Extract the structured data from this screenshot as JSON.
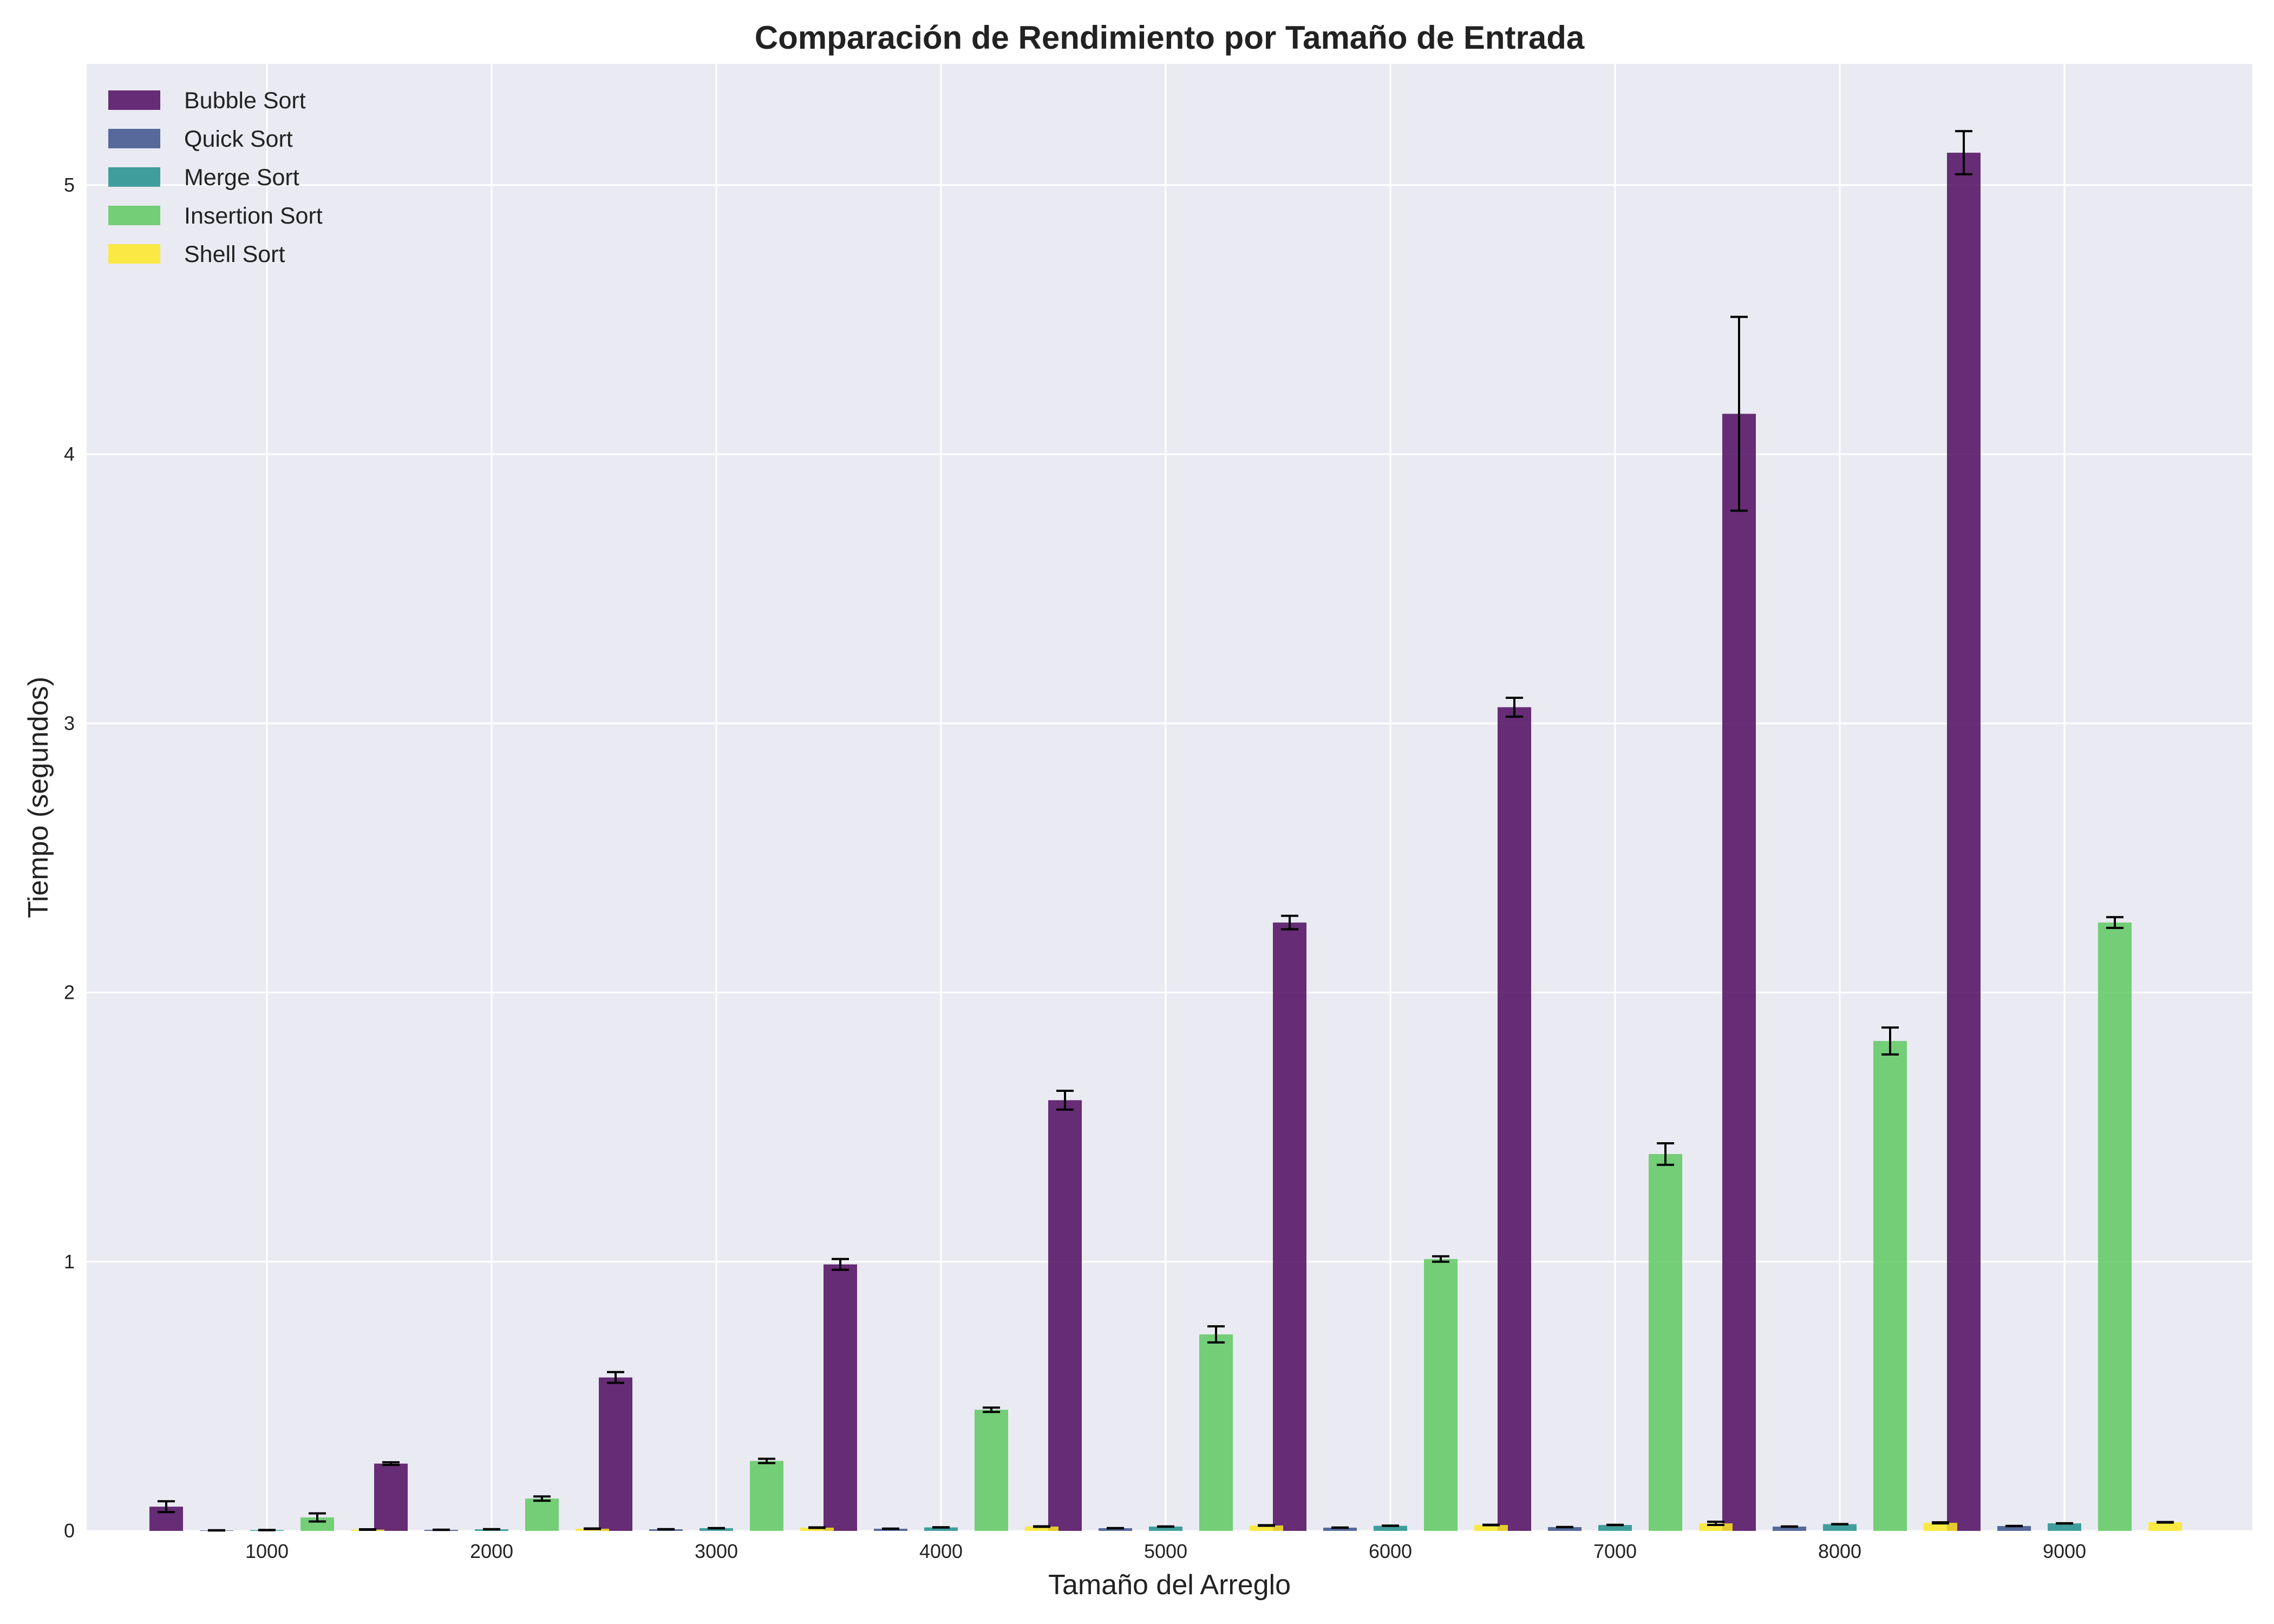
{
  "chart_data": {
    "type": "bar",
    "title": "Comparación de Rendimiento por Tamaño de Entrada",
    "xlabel": "Tamaño del Arreglo",
    "ylabel": "Tiempo (segundos)",
    "categories": [
      "1000",
      "2000",
      "3000",
      "4000",
      "5000",
      "6000",
      "7000",
      "8000",
      "9000"
    ],
    "ylim": [
      0,
      5.45
    ],
    "yticks": [
      "0",
      "1",
      "2",
      "3",
      "4",
      "5"
    ],
    "grid": true,
    "legend_position": "top-left",
    "series": [
      {
        "name": "Bubble Sort",
        "color": "#4f0b5f",
        "values": [
          0.09,
          0.25,
          0.57,
          0.99,
          1.6,
          2.26,
          3.06,
          4.15,
          5.12
        ],
        "errors": [
          0.02,
          0.005,
          0.02,
          0.02,
          0.035,
          0.025,
          0.035,
          0.36,
          0.08
        ]
      },
      {
        "name": "Quick Sort",
        "color": "#3b528b",
        "values": [
          0.002,
          0.004,
          0.006,
          0.008,
          0.01,
          0.012,
          0.014,
          0.016,
          0.018
        ],
        "errors": [
          0.0005,
          0.0005,
          0.0005,
          0.0005,
          0.0005,
          0.0005,
          0.0005,
          0.0005,
          0.0005
        ]
      },
      {
        "name": "Merge Sort",
        "color": "#21918c",
        "values": [
          0.003,
          0.006,
          0.01,
          0.013,
          0.016,
          0.019,
          0.022,
          0.025,
          0.028
        ],
        "errors": [
          0.0005,
          0.0005,
          0.0005,
          0.0005,
          0.0005,
          0.0005,
          0.0005,
          0.0005,
          0.0005
        ]
      },
      {
        "name": "Insertion Sort",
        "color": "#5ec962",
        "values": [
          0.05,
          0.12,
          0.26,
          0.45,
          0.73,
          1.01,
          1.4,
          1.82,
          2.26
        ],
        "errors": [
          0.015,
          0.008,
          0.008,
          0.008,
          0.03,
          0.01,
          0.04,
          0.05,
          0.02
        ]
      },
      {
        "name": "Shell Sort",
        "color": "#fde725",
        "values": [
          0.005,
          0.008,
          0.012,
          0.016,
          0.02,
          0.022,
          0.028,
          0.03,
          0.032
        ],
        "errors": [
          0.001,
          0.001,
          0.001,
          0.001,
          0.001,
          0.001,
          0.006,
          0.002,
          0.001
        ]
      }
    ]
  }
}
